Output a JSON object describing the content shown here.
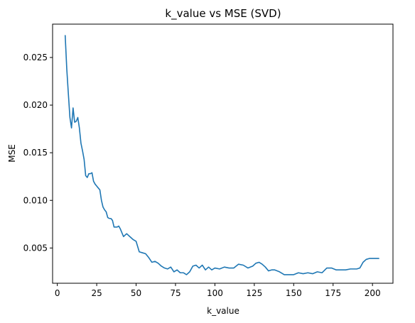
{
  "chart_data": {
    "type": "line",
    "title": "k_value vs MSE (SVD)",
    "xlabel": "k_value",
    "ylabel": "MSE",
    "xlim": [
      -3,
      213
    ],
    "ylim": [
      0.0013,
      0.0285
    ],
    "xticks": [
      0,
      25,
      50,
      75,
      100,
      125,
      150,
      175,
      200
    ],
    "xtick_labels": [
      "0",
      "25",
      "50",
      "75",
      "100",
      "125",
      "150",
      "175",
      "200"
    ],
    "yticks": [
      0.005,
      0.01,
      0.015,
      0.02,
      0.025
    ],
    "ytick_labels": [
      "0.005",
      "0.010",
      "0.015",
      "0.020",
      "0.025"
    ],
    "grid": false,
    "series": [
      {
        "color": "#1f77b4",
        "x": [
          5,
          6,
          7,
          8,
          9,
          10,
          11,
          12,
          13,
          14,
          15,
          16,
          17,
          18,
          19,
          20,
          21,
          22,
          23,
          24,
          25,
          26,
          27,
          28,
          29,
          30,
          31,
          32,
          33,
          34,
          35,
          36,
          37,
          38,
          39,
          40,
          42,
          44,
          46,
          48,
          50,
          52,
          54,
          56,
          58,
          60,
          62,
          64,
          66,
          68,
          70,
          72,
          74,
          76,
          78,
          80,
          82,
          84,
          86,
          88,
          90,
          92,
          94,
          96,
          98,
          100,
          103,
          106,
          109,
          112,
          115,
          118,
          121,
          124,
          126,
          128,
          130,
          132,
          134,
          136,
          138,
          141,
          144,
          147,
          150,
          153,
          156,
          159,
          162,
          165,
          168,
          171,
          174,
          177,
          180,
          183,
          186,
          189,
          190,
          192,
          194,
          196,
          198,
          200,
          202,
          204
        ],
        "y": [
          0.0273,
          0.0238,
          0.0212,
          0.0187,
          0.0176,
          0.0197,
          0.0182,
          0.0183,
          0.0187,
          0.0176,
          0.016,
          0.0152,
          0.0143,
          0.0126,
          0.0124,
          0.0128,
          0.0128,
          0.0129,
          0.012,
          0.0117,
          0.0115,
          0.0113,
          0.0111,
          0.01,
          0.0093,
          0.009,
          0.0088,
          0.0082,
          0.0081,
          0.0081,
          0.0079,
          0.0072,
          0.0072,
          0.0072,
          0.0073,
          0.007,
          0.0062,
          0.0065,
          0.0062,
          0.0059,
          0.0057,
          0.0046,
          0.0045,
          0.0044,
          0.004,
          0.0035,
          0.0036,
          0.0034,
          0.0031,
          0.0029,
          0.0028,
          0.003,
          0.0025,
          0.0027,
          0.0024,
          0.0024,
          0.0022,
          0.0025,
          0.0031,
          0.0032,
          0.0029,
          0.0032,
          0.0027,
          0.003,
          0.0027,
          0.0029,
          0.0028,
          0.003,
          0.0029,
          0.0029,
          0.0033,
          0.0032,
          0.0029,
          0.0031,
          0.0034,
          0.0035,
          0.0033,
          0.003,
          0.0026,
          0.0027,
          0.0027,
          0.0025,
          0.0022,
          0.0022,
          0.0022,
          0.0024,
          0.0023,
          0.0024,
          0.0023,
          0.0025,
          0.0024,
          0.0029,
          0.0029,
          0.0027,
          0.0027,
          0.0027,
          0.0028,
          0.0028,
          0.0028,
          0.0029,
          0.0035,
          0.0038,
          0.0039,
          0.0039,
          0.0039,
          0.0039
        ]
      }
    ]
  }
}
